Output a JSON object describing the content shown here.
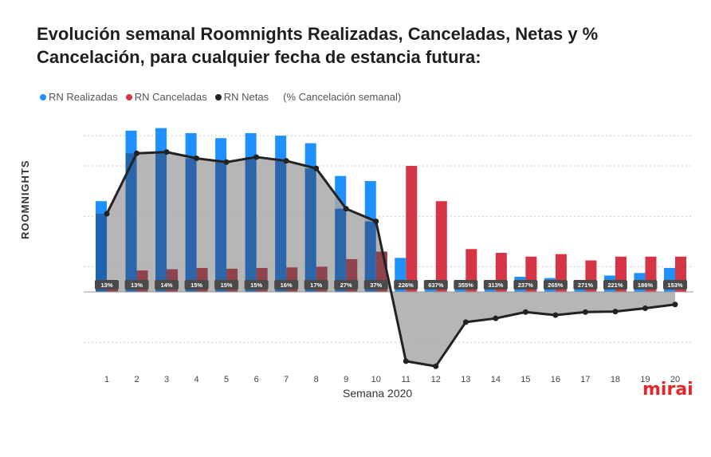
{
  "title": "Evolución semanal Roomnights Realizadas, Canceladas, Netas y % Cancelación, para cualquier fecha de estancia futura:",
  "legend": {
    "realizadas": "RN Realizadas",
    "canceladas": "RN Canceladas",
    "netas": "RN Netas",
    "note": "(% Cancelación semanal)"
  },
  "logo": "mirai",
  "colors": {
    "realizadas": "#1e90ff",
    "realizadas_overlap": "#1f5fa8",
    "canceladas": "#d63545",
    "canceladas_overlap": "#8b3a45",
    "netas": "#222222",
    "area": "#a9a9a9",
    "badge": "#4a4a4a"
  },
  "chart_data": {
    "type": "bar",
    "title": "",
    "xlabel": "Semana 2020",
    "ylabel": "ROOMNIGHTS",
    "ylim": [
      -3,
      6.4
    ],
    "grid": true,
    "legend_position": "top-left",
    "categories": [
      "1",
      "2",
      "3",
      "4",
      "5",
      "6",
      "7",
      "8",
      "9",
      "10",
      "11",
      "12",
      "13",
      "14",
      "15",
      "16",
      "17",
      "18",
      "19",
      "20"
    ],
    "series": [
      {
        "name": "RN Realizadas",
        "type": "bar",
        "values": [
          3.6,
          6.4,
          6.5,
          6.3,
          6.1,
          6.3,
          6.2,
          5.9,
          4.6,
          4.4,
          1.35,
          0.1,
          0.1,
          0.1,
          0.6,
          0.55,
          0.1,
          0.65,
          0.75,
          0.95
        ]
      },
      {
        "name": "RN Canceladas",
        "type": "bar",
        "values": [
          0.45,
          0.85,
          0.9,
          0.95,
          0.92,
          0.95,
          0.97,
          1.0,
          1.3,
          1.6,
          5.0,
          3.6,
          1.7,
          1.55,
          1.4,
          1.5,
          1.25,
          1.4,
          1.4,
          1.4
        ]
      },
      {
        "name": "RN Netas",
        "type": "line",
        "values": [
          3.1,
          5.5,
          5.55,
          5.3,
          5.15,
          5.35,
          5.2,
          4.9,
          3.3,
          2.8,
          -2.75,
          -2.95,
          -1.2,
          -1.05,
          -0.8,
          -0.92,
          -0.8,
          -0.78,
          -0.65,
          -0.5
        ]
      }
    ],
    "annotations": [
      "13%",
      "13%",
      "14%",
      "15%",
      "15%",
      "15%",
      "16%",
      "17%",
      "27%",
      "37%",
      "226%",
      "637%",
      "355%",
      "313%",
      "237%",
      "265%",
      "271%",
      "221%",
      "186%",
      "153%"
    ]
  }
}
